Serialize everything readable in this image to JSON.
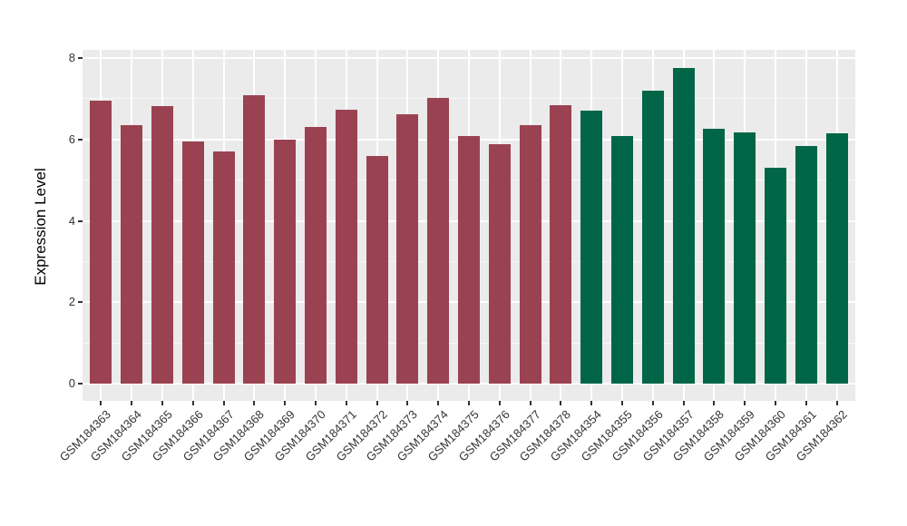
{
  "chart_data": {
    "type": "bar",
    "title": "",
    "xlabel": "",
    "ylabel": "Expression Level",
    "categories": [
      "GSM184363",
      "GSM184364",
      "GSM184365",
      "GSM184366",
      "GSM184367",
      "GSM184368",
      "GSM184369",
      "GSM184370",
      "GSM184371",
      "GSM184372",
      "GSM184373",
      "GSM184374",
      "GSM184375",
      "GSM184376",
      "GSM184377",
      "GSM184378",
      "GSM184354",
      "GSM184355",
      "GSM184356",
      "GSM184357",
      "GSM184358",
      "GSM184359",
      "GSM184360",
      "GSM184361",
      "GSM184362"
    ],
    "values": [
      6.95,
      6.36,
      6.81,
      5.96,
      5.7,
      7.09,
      6.0,
      6.3,
      6.72,
      5.6,
      6.61,
      7.01,
      6.09,
      5.89,
      6.35,
      6.85,
      6.7,
      6.09,
      7.2,
      7.76,
      6.27,
      6.17,
      5.31,
      5.84,
      6.15
    ],
    "groups": [
      "group1",
      "group1",
      "group1",
      "group1",
      "group1",
      "group1",
      "group1",
      "group1",
      "group1",
      "group1",
      "group1",
      "group1",
      "group1",
      "group1",
      "group1",
      "group1",
      "group2",
      "group2",
      "group2",
      "group2",
      "group2",
      "group2",
      "group2",
      "group2",
      "group2"
    ],
    "group_colors": {
      "group1": "#9A4251",
      "group2": "#006647"
    },
    "yticks": [
      0,
      2,
      4,
      6,
      8
    ],
    "yticks_minor": [
      1,
      3,
      5,
      7
    ],
    "ylim": [
      -0.42,
      8.2
    ],
    "legend": "none",
    "grid": "on",
    "panel_bg": "#EBEBEB",
    "grid_major_color": "#FFFFFF",
    "grid_minor_color": "rgba(255,255,255,0.6)"
  }
}
